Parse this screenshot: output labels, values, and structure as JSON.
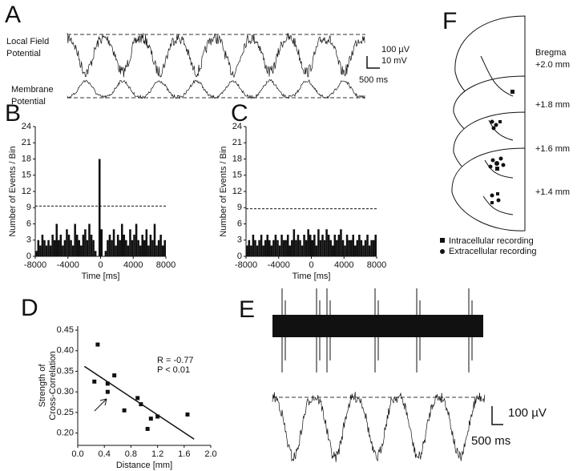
{
  "panel_a": {
    "letter": "A",
    "lfp_label": [
      "Local Field",
      "Potential"
    ],
    "vm_label": [
      "Membrane",
      "Potential"
    ],
    "scale": [
      "100 µV",
      "10 mV",
      "500 ms"
    ]
  },
  "chart_data": [
    {
      "type": "histogram",
      "label": "B",
      "ylabel": "Number of Events / Bin",
      "xlabel": "Time [ms]",
      "bins": [
        -8000,
        -7750,
        -7500,
        -7250,
        -7000,
        -6750,
        -6500,
        -6250,
        -6000,
        -5750,
        -5500,
        -5250,
        -5000,
        -4750,
        -4500,
        -4250,
        -4000,
        -3750,
        -3500,
        -3250,
        -3000,
        -2750,
        -2500,
        -2250,
        -2000,
        -1750,
        -1500,
        -1250,
        -1000,
        -750,
        -500,
        -250,
        0,
        250,
        500,
        750,
        1000,
        1250,
        1500,
        1750,
        2000,
        2250,
        2500,
        2750,
        3000,
        3250,
        3500,
        3750,
        4000,
        4250,
        4500,
        4750,
        5000,
        5250,
        5500,
        5750,
        6000,
        6250,
        6500,
        6750,
        7000,
        7250,
        7500,
        7750,
        8000
      ],
      "values": [
        1,
        3,
        2,
        4,
        3,
        2,
        3,
        2,
        4,
        3,
        6,
        3,
        4,
        2,
        3,
        5,
        4,
        3,
        2,
        6,
        4,
        3,
        2,
        4,
        5,
        3,
        6,
        4,
        3,
        1,
        0,
        18,
        5,
        0,
        1,
        3,
        4,
        3,
        5,
        2,
        4,
        3,
        6,
        4,
        3,
        2,
        5,
        3,
        4,
        6,
        3,
        2,
        4,
        3,
        5,
        2,
        4,
        3,
        6,
        2,
        3,
        4,
        2,
        3
      ],
      "color": "#111111",
      "threshold": 9.3,
      "xlim": [
        -8000,
        8000
      ],
      "xticks": [
        -8000,
        -4000,
        0,
        4000,
        8000
      ],
      "ylim": [
        0,
        24
      ],
      "yticks": [
        0,
        3,
        6,
        9,
        12,
        15,
        18,
        21,
        24
      ]
    },
    {
      "type": "histogram",
      "label": "C",
      "ylabel": "Number of Events / Bin",
      "xlabel": "Time [ms]",
      "bins": [
        -8000,
        -7750,
        -7500,
        -7250,
        -7000,
        -6750,
        -6500,
        -6250,
        -6000,
        -5750,
        -5500,
        -5250,
        -5000,
        -4750,
        -4500,
        -4250,
        -4000,
        -3750,
        -3500,
        -3250,
        -3000,
        -2750,
        -2500,
        -2250,
        -2000,
        -1750,
        -1500,
        -1250,
        -1000,
        -750,
        -500,
        -250,
        0,
        250,
        500,
        750,
        1000,
        1250,
        1500,
        1750,
        2000,
        2250,
        2500,
        2750,
        3000,
        3250,
        3500,
        3750,
        4000,
        4250,
        4500,
        4750,
        5000,
        5250,
        5500,
        5750,
        6000,
        6250,
        6500,
        6750,
        7000,
        7250,
        7500,
        7750,
        8000
      ],
      "values": [
        2,
        3,
        2,
        4,
        3,
        2,
        3,
        4,
        2,
        3,
        4,
        3,
        2,
        3,
        4,
        3,
        2,
        4,
        3,
        3,
        4,
        2,
        3,
        5,
        3,
        4,
        3,
        2,
        4,
        3,
        5,
        4,
        3,
        4,
        2,
        5,
        3,
        4,
        3,
        5,
        4,
        3,
        2,
        4,
        3,
        4,
        5,
        3,
        2,
        4,
        3,
        3,
        4,
        2,
        3,
        4,
        3,
        2,
        3,
        4,
        2,
        3,
        3,
        4
      ],
      "color": "#111111",
      "threshold": 8.8,
      "xlim": [
        -8000,
        8000
      ],
      "xticks": [
        -8000,
        -4000,
        0,
        4000,
        8000
      ],
      "ylim": [
        0,
        24
      ],
      "yticks": [
        0,
        3,
        6,
        9,
        12,
        15,
        18,
        21,
        24
      ]
    },
    {
      "type": "scatter",
      "label": "D",
      "ylabel": [
        "Strength of",
        "Cross-Correlation"
      ],
      "xlabel": "Distance [mm]",
      "x": [
        0.25,
        0.3,
        0.45,
        0.45,
        0.55,
        0.7,
        0.9,
        0.95,
        1.05,
        1.1,
        1.2,
        1.65
      ],
      "y": [
        0.325,
        0.415,
        0.32,
        0.3,
        0.34,
        0.255,
        0.285,
        0.27,
        0.21,
        0.235,
        0.24,
        0.245
      ],
      "color": "#111111",
      "fit": {
        "x": [
          0.1,
          1.75
        ],
        "y": [
          0.362,
          0.185
        ]
      },
      "annotations": [
        "R = -0.77",
        "P < 0.01"
      ],
      "xlim": [
        0,
        2
      ],
      "xticks": [
        {
          "value": 0,
          "label": "0.0"
        },
        0.4,
        0.8,
        1.2,
        1.6,
        {
          "value": 2,
          "label": "2.0"
        }
      ],
      "ylim": [
        0.17,
        0.46
      ],
      "yticks": [
        {
          "value": 0.2,
          "label": "0.20"
        },
        0.25,
        {
          "value": 0.3,
          "label": "0.30"
        },
        0.35,
        {
          "value": 0.4,
          "label": "0.40"
        },
        0.45
      ]
    }
  ],
  "panel_e": {
    "letter": "E",
    "scale": [
      "100 µV",
      "500 ms"
    ]
  },
  "panel_f": {
    "letter": "F",
    "bregma": "Bregma",
    "levels": [
      "+2.0 mm",
      "+1.8 mm",
      "+1.6 mm",
      "+1.4 mm"
    ],
    "legend": [
      "Intracellular recording",
      "Extracellular recording"
    ]
  }
}
